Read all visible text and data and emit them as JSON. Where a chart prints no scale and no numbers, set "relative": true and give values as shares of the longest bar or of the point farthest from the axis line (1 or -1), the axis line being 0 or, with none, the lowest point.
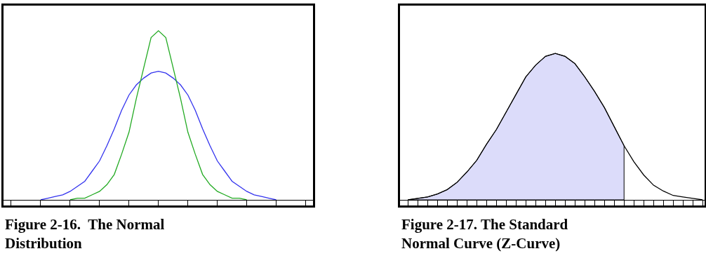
{
  "chart_data": [
    {
      "type": "line",
      "title": "Figure 2-16.  The Normal Distribution",
      "relative": true,
      "legend": false,
      "grid": false,
      "marker": "none",
      "line_style": "solid",
      "categories": [
        null,
        null,
        null,
        null,
        null,
        null,
        null,
        null,
        null,
        null,
        null,
        null,
        null,
        null,
        null,
        null,
        null,
        null,
        null,
        null,
        null,
        null,
        null,
        null,
        null,
        null,
        null,
        null,
        null,
        null,
        null,
        null,
        null
      ],
      "series": [
        {
          "color": "#3333ee",
          "values": [
            0,
            0.01,
            0.02,
            0.03,
            0.05,
            0.08,
            0.11,
            0.17,
            0.23,
            0.32,
            0.42,
            0.53,
            0.62,
            0.68,
            0.72,
            0.75,
            0.76,
            0.75,
            0.72,
            0.68,
            0.62,
            0.53,
            0.42,
            0.32,
            0.23,
            0.17,
            0.11,
            0.08,
            0.05,
            0.03,
            0.02,
            0.01,
            0
          ]
        },
        {
          "color": "#22aa22",
          "values": [
            null,
            null,
            null,
            null,
            0,
            0.01,
            0.01,
            0.03,
            0.05,
            0.09,
            0.15,
            0.27,
            0.4,
            0.6,
            0.78,
            0.96,
            1,
            0.96,
            0.78,
            0.6,
            0.4,
            0.27,
            0.15,
            0.09,
            0.05,
            0.03,
            0.01,
            0.01,
            0,
            null,
            null,
            null,
            null
          ]
        }
      ]
    },
    {
      "type": "line",
      "title": "Figure 2-17. The Standard Normal Curve (Z-Curve)",
      "relative": true,
      "legend": false,
      "grid": false,
      "marker": "none",
      "line_style": "solid",
      "categories": [
        null,
        null,
        null,
        null,
        null,
        null,
        null,
        null,
        null,
        null,
        null,
        null,
        null,
        null,
        null,
        null,
        null,
        null,
        null,
        null,
        null,
        null,
        null,
        null,
        null,
        null,
        null,
        null,
        null,
        null,
        null
      ],
      "series": [
        {
          "type": "area",
          "color": "#dcdcfa",
          "values": [
            0,
            0.01,
            0.02,
            0.04,
            0.07,
            0.12,
            0.19,
            0.27,
            0.38,
            0.48,
            0.6,
            0.72,
            0.84,
            0.92,
            0.98,
            1,
            0.98,
            0.93,
            0.84,
            0.74,
            0.63,
            0.5,
            0.37,
            null,
            null,
            null,
            null,
            null,
            null,
            null,
            null
          ]
        },
        {
          "color": "#000000",
          "values": [
            0,
            0.01,
            0.02,
            0.04,
            0.07,
            0.12,
            0.19,
            0.27,
            0.38,
            0.48,
            0.6,
            0.72,
            0.84,
            0.92,
            0.98,
            1,
            0.98,
            0.93,
            0.84,
            0.74,
            0.63,
            0.5,
            0.37,
            0.26,
            0.17,
            0.1,
            0.06,
            0.03,
            0.02,
            0.01,
            0
          ]
        }
      ]
    }
  ]
}
